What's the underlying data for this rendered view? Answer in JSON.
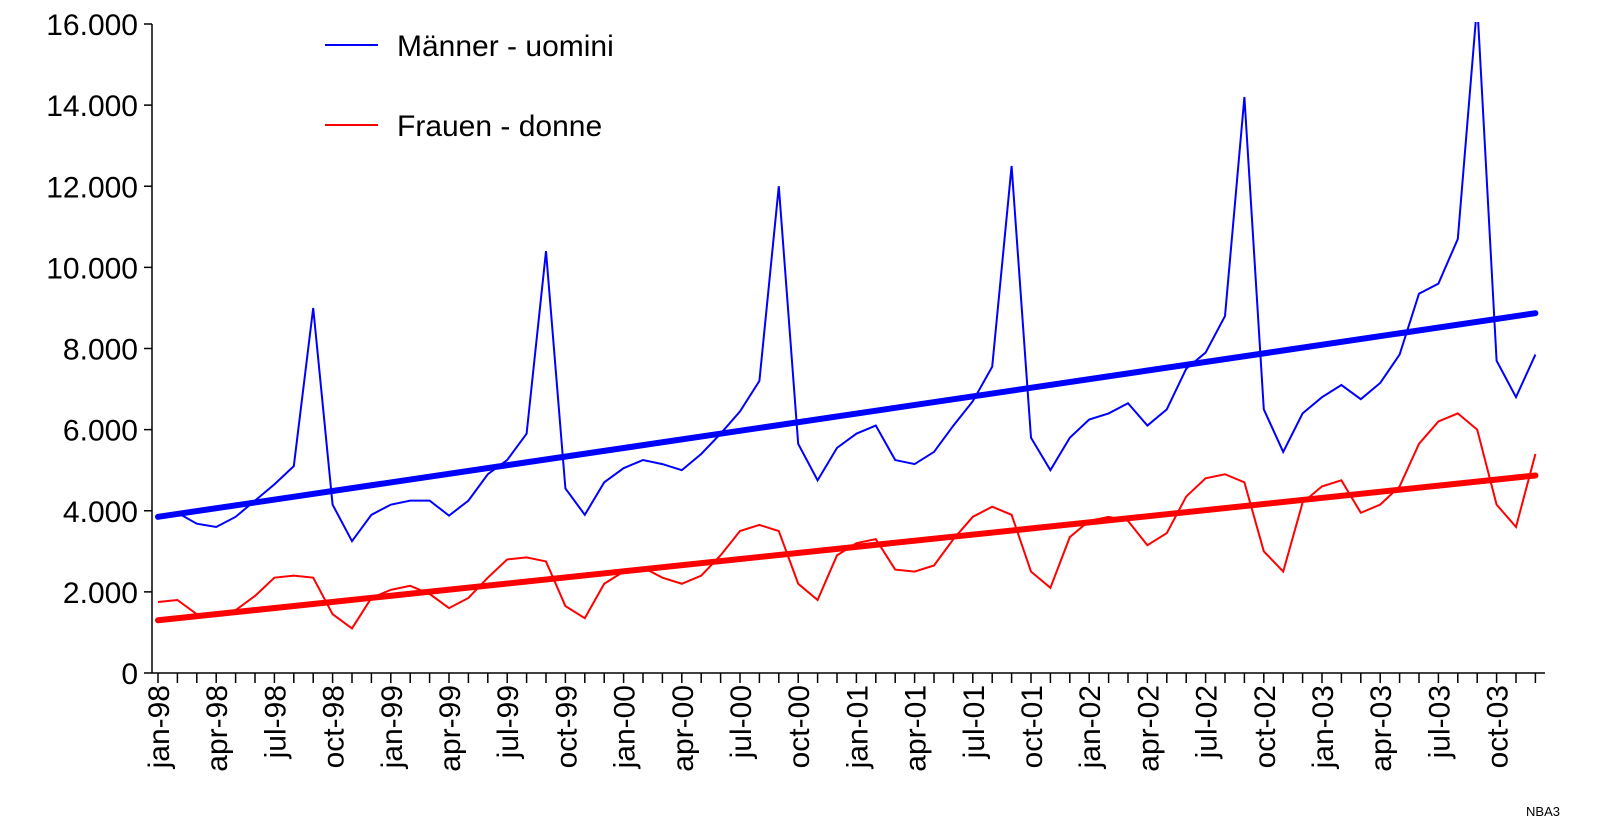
{
  "chart_data": {
    "type": "line",
    "categories": [
      "jan-98",
      null,
      null,
      "apr-98",
      null,
      null,
      "jul-98",
      null,
      null,
      "oct-98",
      null,
      null,
      "jan-99",
      null,
      null,
      "apr-99",
      null,
      null,
      "jul-99",
      null,
      null,
      "oct-99",
      null,
      null,
      "jan-00",
      null,
      null,
      "apr-00",
      null,
      null,
      "jul-00",
      null,
      null,
      "oct-00",
      null,
      null,
      "jan-01",
      null,
      null,
      "apr-01",
      null,
      null,
      "jul-01",
      null,
      null,
      "oct-01",
      null,
      null,
      "jan-02",
      null,
      null,
      "apr-02",
      null,
      null,
      "jul-02",
      null,
      null,
      "oct-02",
      null,
      null,
      "jan-03",
      null,
      null,
      "apr-03",
      null,
      null,
      "jul-03",
      null,
      null,
      "oct-03",
      null,
      null
    ],
    "series": [
      {
        "name": "Männer - uomini",
        "color": "#0000ff",
        "values": [
          3850,
          3950,
          3680,
          3600,
          3850,
          4250,
          4650,
          5100,
          9000,
          4150,
          3250,
          3900,
          4150,
          4250,
          4250,
          3880,
          4250,
          4900,
          5250,
          5900,
          10400,
          4550,
          3900,
          4700,
          5050,
          5250,
          5150,
          5000,
          5400,
          5900,
          6450,
          7200,
          12000,
          5650,
          4750,
          5550,
          5900,
          6100,
          5250,
          5150,
          5450,
          6100,
          6700,
          7550,
          12500,
          5800,
          5000,
          5800,
          6250,
          6400,
          6650,
          6100,
          6500,
          7500,
          7900,
          8800,
          14200,
          6500,
          5450,
          6400,
          6800,
          7100,
          6750,
          7150,
          7850,
          9350,
          9600,
          10700,
          16500,
          7700,
          6800,
          7850
        ]
      },
      {
        "name": "Frauen - donne",
        "color": "#ff0000",
        "values": [
          1750,
          1800,
          1450,
          1400,
          1550,
          1900,
          2350,
          2400,
          2350,
          1450,
          1100,
          1850,
          2050,
          2150,
          1950,
          1600,
          1850,
          2350,
          2800,
          2850,
          2750,
          1650,
          1350,
          2200,
          2500,
          2600,
          2350,
          2200,
          2400,
          2900,
          3500,
          3650,
          3500,
          2200,
          1800,
          2900,
          3200,
          3300,
          2550,
          2500,
          2650,
          3300,
          3850,
          4100,
          3900,
          2500,
          2100,
          3350,
          3750,
          3850,
          3750,
          3150,
          3450,
          4350,
          4800,
          4900,
          4700,
          3000,
          2500,
          4200,
          4600,
          4750,
          3950,
          4150,
          4600,
          5650,
          6200,
          6400,
          6000,
          4150,
          3600,
          5400
        ]
      }
    ],
    "trendlines": [
      {
        "color": "#0000ff",
        "values": [
          3850,
          8870
        ]
      },
      {
        "color": "#ff0000",
        "values": [
          1300,
          4870
        ]
      }
    ],
    "ylim": [
      0,
      16000
    ],
    "yticks": [
      0,
      {
        "value": 2000,
        "label": "2.000"
      },
      {
        "value": 4000,
        "label": "4.000"
      },
      {
        "value": 6000,
        "label": "6.000"
      },
      {
        "value": 8000,
        "label": "8.000"
      },
      {
        "value": 10000,
        "label": "10.000"
      },
      {
        "value": 12000,
        "label": "12.000"
      },
      {
        "value": 14000,
        "label": "14.000"
      },
      {
        "value": 16000,
        "label": "16.000"
      }
    ],
    "legend": "top-left",
    "source_note": "NBA3"
  }
}
